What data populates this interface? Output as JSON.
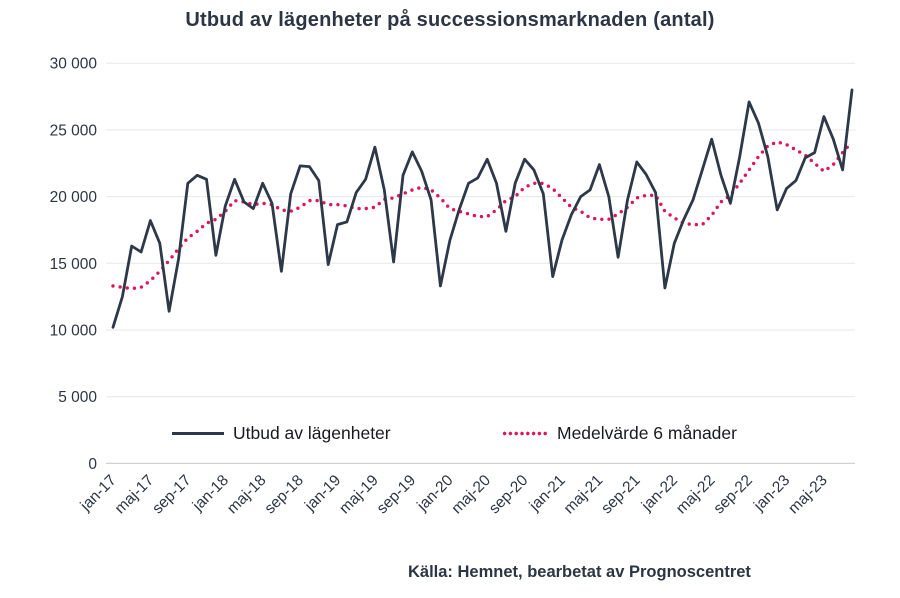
{
  "title": "Utbud av lägenheter på successionsmarknaden (antal)",
  "source": "Källa: Hemnet, bearbetat av Prognoscentret",
  "legend": {
    "supply_label": "Utbud av lägenheter",
    "average_label": "Medelvärde 6 månader"
  },
  "colors": {
    "line": "#2d3848",
    "average": "#df145c",
    "grid": "#e7e7e7",
    "axis": "#d2d2d2",
    "text": "#2b3544"
  },
  "chart_data": {
    "type": "line",
    "title": "Utbud av lägenheter på successionsmarknaden (antal)",
    "ylim": [
      0,
      30000
    ],
    "grid": true,
    "legend_position": "bottom-inside",
    "y_tick_labels": [
      "30 000",
      "25 000",
      "20 000",
      "15 000",
      "10 000",
      "5 000",
      "0"
    ],
    "x_tick_labels": [
      "jan-17",
      "maj-17",
      "sep-17",
      "jan-18",
      "maj-18",
      "sep-18",
      "jan-19",
      "maj-19",
      "sep-19",
      "jan-20",
      "maj-20",
      "sep-20",
      "jan-21",
      "maj-21",
      "sep-21",
      "jan-22",
      "maj-22",
      "sep-22",
      "jan-23",
      "maj-23"
    ],
    "x_tick_every_n_months": 4,
    "categories": [
      "jan-17",
      "feb-17",
      "mar-17",
      "apr-17",
      "maj-17",
      "jun-17",
      "jul-17",
      "aug-17",
      "sep-17",
      "okt-17",
      "nov-17",
      "dec-17",
      "jan-18",
      "feb-18",
      "mar-18",
      "apr-18",
      "maj-18",
      "jun-18",
      "jul-18",
      "aug-18",
      "sep-18",
      "okt-18",
      "nov-18",
      "dec-18",
      "jan-19",
      "feb-19",
      "mar-19",
      "apr-19",
      "maj-19",
      "jun-19",
      "jul-19",
      "aug-19",
      "sep-19",
      "okt-19",
      "nov-19",
      "dec-19",
      "jan-20",
      "feb-20",
      "mar-20",
      "apr-20",
      "maj-20",
      "jun-20",
      "jul-20",
      "aug-20",
      "sep-20",
      "okt-20",
      "nov-20",
      "dec-20",
      "jan-21",
      "feb-21",
      "mar-21",
      "apr-21",
      "maj-21",
      "jun-21",
      "jul-21",
      "aug-21",
      "sep-21",
      "okt-21",
      "nov-21",
      "dec-21",
      "jan-22",
      "feb-22",
      "mar-22",
      "apr-22",
      "maj-22",
      "jun-22",
      "jul-22",
      "aug-22",
      "sep-22",
      "okt-22",
      "nov-22",
      "dec-22",
      "jan-23",
      "feb-23",
      "mar-23",
      "apr-23",
      "maj-23",
      "jun-23",
      "jul-23",
      "aug-23"
    ],
    "series": [
      {
        "name": "Utbud av lägenheter",
        "style": "solid",
        "values": [
          10200,
          12500,
          16300,
          15850,
          18200,
          16500,
          11400,
          15300,
          21000,
          21600,
          21300,
          15600,
          19300,
          21300,
          19600,
          19100,
          21000,
          19500,
          14400,
          20200,
          22300,
          22250,
          21200,
          14900,
          17900,
          18100,
          20300,
          21300,
          23700,
          20500,
          15100,
          21600,
          23350,
          21900,
          19750,
          13300,
          16700,
          19000,
          21000,
          21400,
          22800,
          21000,
          17400,
          21000,
          22800,
          22000,
          20200,
          14000,
          16750,
          18650,
          20000,
          20500,
          22400,
          20000,
          15450,
          19750,
          22600,
          21650,
          20300,
          13150,
          16500,
          18250,
          19750,
          22000,
          24300,
          21600,
          19500,
          23000,
          27100,
          25500,
          23000,
          19000,
          20600,
          21200,
          22900,
          23300,
          26000,
          24300,
          22000,
          28000
        ]
      },
      {
        "name": "Medelvärde 6 månader",
        "style": "dotted",
        "values": [
          13300,
          13200,
          13100,
          13200,
          13700,
          14400,
          15200,
          16100,
          16900,
          17400,
          18000,
          18300,
          18900,
          19700,
          19600,
          19400,
          19500,
          19400,
          19000,
          18900,
          19200,
          19700,
          19700,
          19400,
          19400,
          19300,
          19100,
          19100,
          19200,
          19800,
          19900,
          20200,
          20500,
          20700,
          20500,
          19900,
          19100,
          18900,
          18700,
          18500,
          18500,
          19000,
          19700,
          20000,
          20700,
          21000,
          21000,
          20600,
          19900,
          19200,
          18900,
          18400,
          18300,
          18300,
          18700,
          19200,
          19900,
          20100,
          20100,
          18900,
          18400,
          18000,
          17900,
          17900,
          18600,
          19600,
          20100,
          21000,
          22000,
          23000,
          23800,
          24100,
          23900,
          23500,
          23100,
          22500,
          21900,
          22400,
          23300,
          24100
        ]
      }
    ]
  }
}
